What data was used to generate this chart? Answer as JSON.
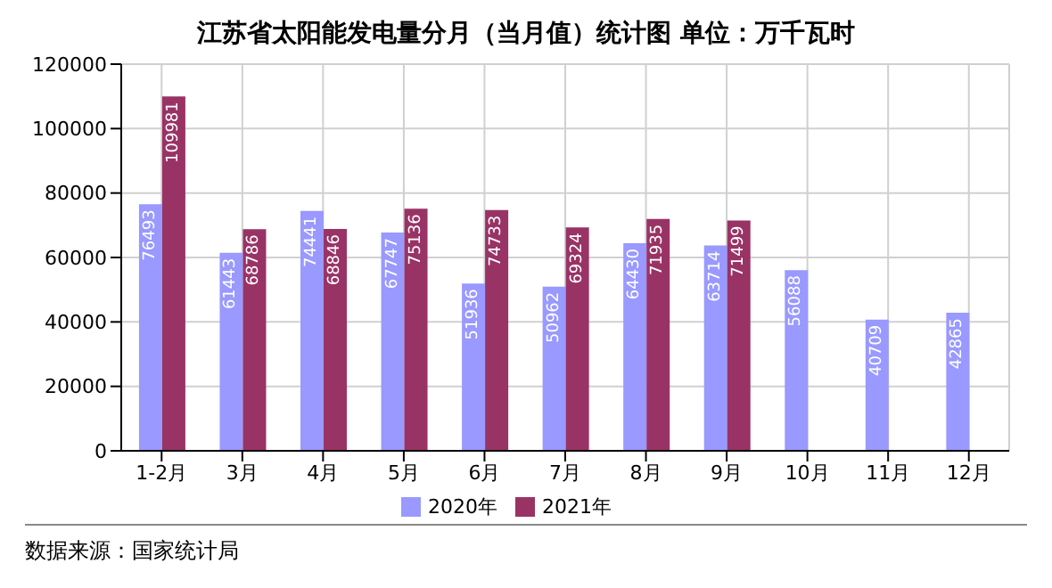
{
  "chart_data": {
    "type": "bar",
    "title": "江苏省太阳能发电量分月（当月值）统计图 单位：万千瓦时",
    "categories": [
      "1-2月",
      "3月",
      "4月",
      "5月",
      "6月",
      "7月",
      "8月",
      "9月",
      "10月",
      "11月",
      "12月"
    ],
    "series": [
      {
        "name": "2020年",
        "color": "#9999ff",
        "values": [
          76493,
          61443,
          74441,
          67747,
          51936,
          50962,
          64430,
          63714,
          56088,
          40709,
          42865
        ]
      },
      {
        "name": "2021年",
        "color": "#993366",
        "values": [
          109981,
          68786,
          68846,
          75136,
          74733,
          69324,
          71935,
          71499,
          null,
          null,
          null
        ]
      }
    ],
    "ylim": [
      0,
      120000
    ],
    "yticks": [
      0,
      20000,
      40000,
      60000,
      80000,
      100000,
      120000
    ],
    "grid": true,
    "legend": "bottom",
    "data_labels": true,
    "annotations": [
      "数据来源：国家统计局"
    ]
  }
}
